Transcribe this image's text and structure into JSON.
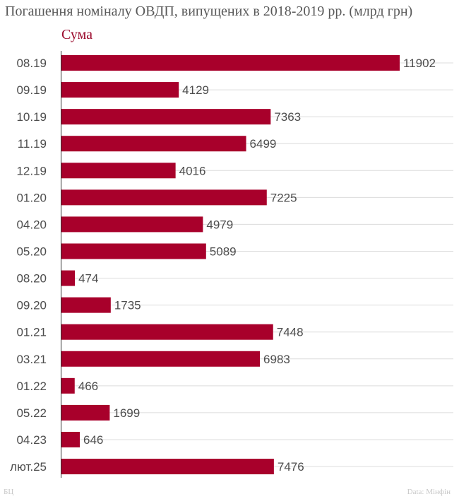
{
  "title": "Погашення номіналу ОВДП, випущених в 2018-2019 рр. (млрд грн)",
  "footer": {
    "source_left": "БЦ",
    "source_right": "Data: Мінфін"
  },
  "colors": {
    "bar": "#a8002b",
    "legend": "#9b0a2c",
    "grid": "#dcdcdc",
    "axis": "#333333",
    "text": "#4d4d4d"
  },
  "chart_data": {
    "type": "bar",
    "orientation": "horizontal",
    "title": "Погашення номіналу ОВДП, випущених в 2018-2019 рр. (млрд грн)",
    "legend": [
      "Сума"
    ],
    "legend_position": "top-left",
    "grid": true,
    "xlim": [
      0,
      12500
    ],
    "categories": [
      "08.19",
      "09.19",
      "10.19",
      "11.19",
      "12.19",
      "01.20",
      "04.20",
      "05.20",
      "08.20",
      "09.20",
      "01.21",
      "03.21",
      "01.22",
      "05.22",
      "04.23",
      "лют.25"
    ],
    "series": [
      {
        "name": "Сума",
        "values": [
          11902,
          4129,
          7363,
          6499,
          4016,
          7225,
          4979,
          5089,
          474,
          1735,
          7448,
          6983,
          466,
          1699,
          646,
          7476
        ]
      }
    ]
  }
}
